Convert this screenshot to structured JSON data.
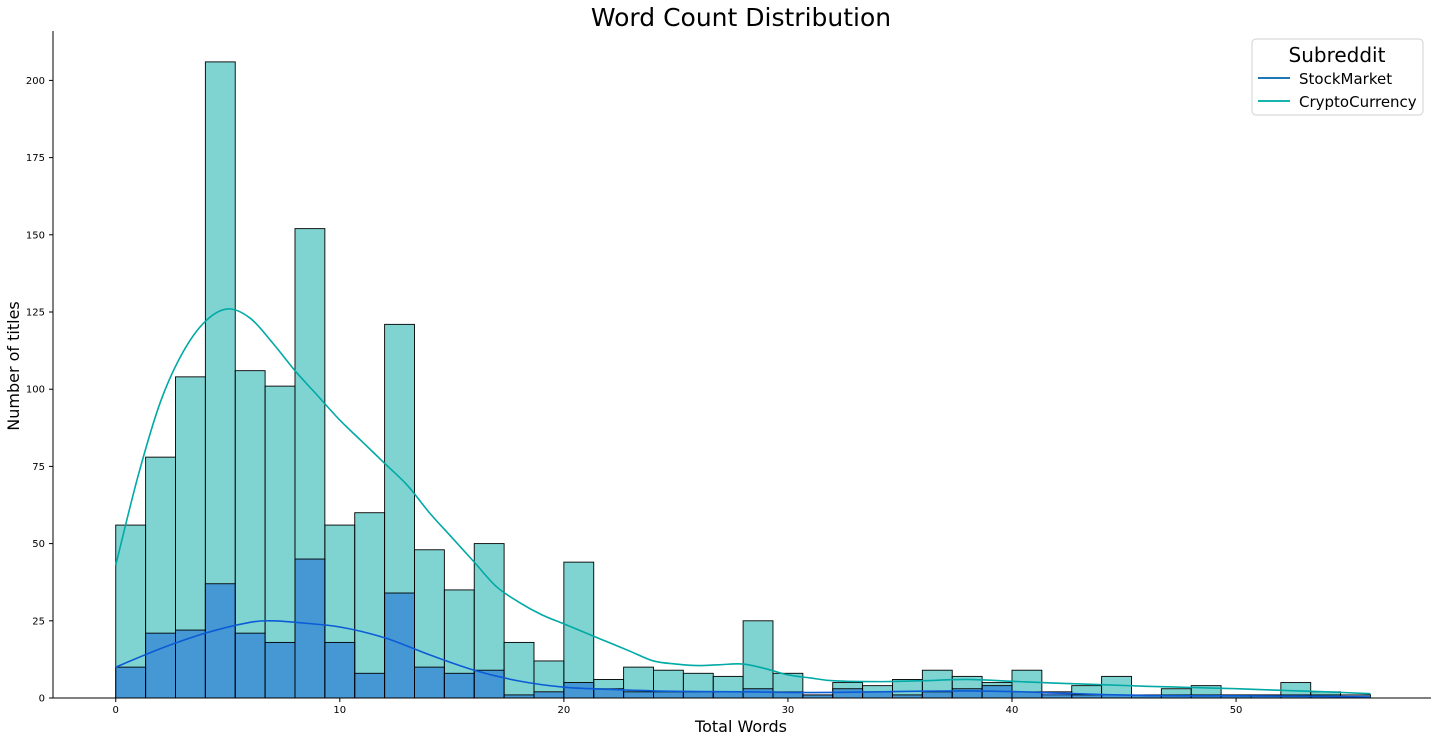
{
  "chart_data": {
    "type": "bar",
    "title": "Word Count Distribution",
    "xlabel": "Total Words",
    "ylabel": "Number of titles",
    "xlim": [
      -2.8,
      58.7
    ],
    "ylim": [
      0,
      216
    ],
    "xticks": [
      0,
      10,
      20,
      30,
      40,
      50
    ],
    "yticks": [
      0,
      25,
      50,
      75,
      100,
      125,
      150,
      175,
      200
    ],
    "bin_start": 0,
    "bin_width": 1.3333,
    "grid": false,
    "legend_position": "top-right",
    "legend_title": "Subreddit",
    "colors": {
      "StockMarket": "#0b5bd6",
      "StockMarket_line": "#1f77b4",
      "CryptoCurrency": "#00a9a5",
      "CryptoCurrency_line": "#17b3ad"
    },
    "series": [
      {
        "name": "StockMarket",
        "values": [
          10,
          21,
          22,
          37,
          21,
          18,
          45,
          18,
          8,
          34,
          10,
          8,
          9,
          1,
          2,
          5,
          3,
          2,
          2,
          2,
          2,
          3,
          2,
          1,
          3,
          2,
          1,
          2,
          3,
          4,
          2,
          2,
          1,
          1,
          1,
          1,
          1,
          1,
          1,
          1,
          1,
          1,
          0
        ],
        "kde": [
          [
            0,
            10
          ],
          [
            2,
            16
          ],
          [
            4,
            21
          ],
          [
            6,
            24.5
          ],
          [
            7,
            25
          ],
          [
            8,
            24.5
          ],
          [
            10,
            23
          ],
          [
            12,
            19.5
          ],
          [
            14,
            14
          ],
          [
            16,
            9
          ],
          [
            18,
            5.5
          ],
          [
            20,
            3.5
          ],
          [
            22,
            2.8
          ],
          [
            24,
            2.3
          ],
          [
            26,
            2.1
          ],
          [
            28,
            2
          ],
          [
            30,
            1.8
          ],
          [
            32,
            1.8
          ],
          [
            34,
            2
          ],
          [
            36,
            2.2
          ],
          [
            38,
            2.3
          ],
          [
            40,
            2.1
          ],
          [
            42,
            1.6
          ],
          [
            44,
            1.1
          ],
          [
            46,
            0.8
          ],
          [
            48,
            0.7
          ],
          [
            50,
            0.7
          ],
          [
            52,
            0.6
          ],
          [
            54,
            0.5
          ],
          [
            56,
            0.3
          ]
        ]
      },
      {
        "name": "CryptoCurrency",
        "values": [
          56,
          78,
          104,
          206,
          106,
          101,
          152,
          56,
          60,
          121,
          48,
          35,
          50,
          18,
          12,
          44,
          6,
          10,
          9,
          8,
          7,
          25,
          8,
          1,
          5,
          4,
          6,
          9,
          7,
          5,
          9,
          1,
          4,
          7,
          1,
          3,
          4,
          1,
          1,
          5,
          2,
          0,
          0
        ],
        "kde": [
          [
            0,
            43
          ],
          [
            1,
            72
          ],
          [
            2,
            96
          ],
          [
            3,
            112
          ],
          [
            4,
            122
          ],
          [
            5,
            126
          ],
          [
            6,
            123
          ],
          [
            7,
            115
          ],
          [
            8,
            106
          ],
          [
            9,
            98
          ],
          [
            10,
            90
          ],
          [
            11,
            83
          ],
          [
            12,
            76
          ],
          [
            13,
            69
          ],
          [
            14,
            60
          ],
          [
            15,
            52
          ],
          [
            16,
            44
          ],
          [
            17,
            36
          ],
          [
            18,
            31
          ],
          [
            19,
            27
          ],
          [
            20,
            24
          ],
          [
            21,
            21
          ],
          [
            22,
            18
          ],
          [
            23,
            15
          ],
          [
            24,
            12
          ],
          [
            25,
            11
          ],
          [
            26,
            10.5
          ],
          [
            27,
            10.8
          ],
          [
            28,
            11
          ],
          [
            29,
            9.5
          ],
          [
            30,
            7.5
          ],
          [
            31,
            6.5
          ],
          [
            32,
            5.6
          ],
          [
            34,
            5.3
          ],
          [
            36,
            5.6
          ],
          [
            38,
            6
          ],
          [
            40,
            5.4
          ],
          [
            42,
            4.8
          ],
          [
            44,
            4.3
          ],
          [
            46,
            3.8
          ],
          [
            48,
            3.4
          ],
          [
            50,
            3
          ],
          [
            52,
            2.5
          ],
          [
            54,
            2
          ],
          [
            56,
            1.4
          ]
        ]
      }
    ]
  }
}
